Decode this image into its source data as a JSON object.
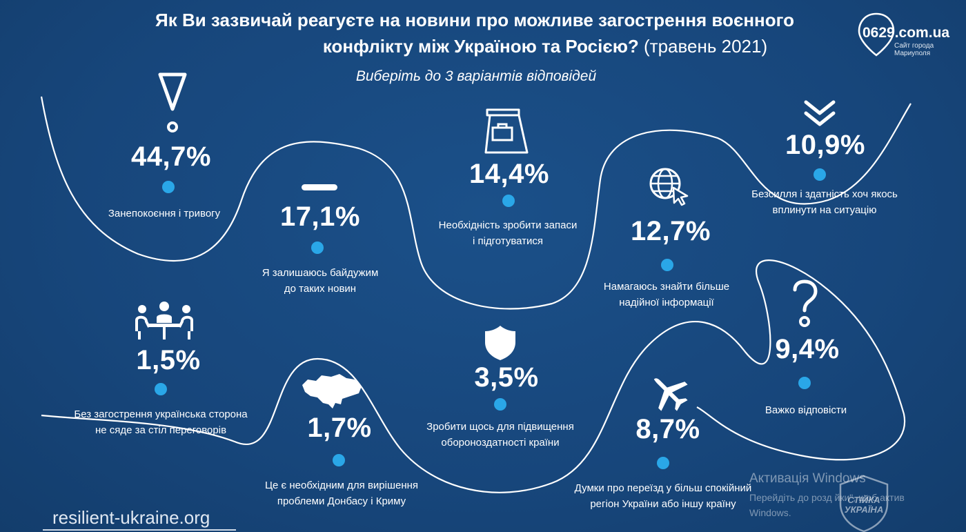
{
  "header": {
    "title_line1": "Як Ви зазвичай реагуєте на новини про можливе загострення воєнного",
    "title_line2": "конфлікту між Україною та Росією?",
    "title_date": " (травень 2021)",
    "subtitle": "Виберіть до 3 варіантів відповідей"
  },
  "chart_data": {
    "type": "infographic",
    "value_suffix": "%",
    "items": [
      {
        "label": "Занепокоєння і тривогу",
        "value": 44.7,
        "value_text": "44,7%",
        "icon": "exclamation-icon"
      },
      {
        "label": "Я залишаюсь байдужим до таких новин",
        "label_lines": [
          "Я залишаюсь байдужим",
          "до таких новин"
        ],
        "value": 17.1,
        "value_text": "17,1%",
        "icon": "minus-icon"
      },
      {
        "label": "Необхідність зробити запаси і підготуватися",
        "label_lines": [
          "Необхідність зробити запаси",
          "і підготуватися"
        ],
        "value": 14.4,
        "value_text": "14,4%",
        "icon": "shopping-bag-icon"
      },
      {
        "label": "Намагаюсь знайти більше надійної інформації",
        "label_lines": [
          "Намагаюсь знайти більше",
          "надійної інформації"
        ],
        "value": 12.7,
        "value_text": "12,7%",
        "icon": "globe-cursor-icon"
      },
      {
        "label": "Безсилля і здатність хоч якось вплинути на ситуацію",
        "label_lines": [
          "Безсилля і здатність хоч якось",
          "вплинути на ситуацію"
        ],
        "value": 10.9,
        "value_text": "10,9%",
        "icon": "double-chevron-down-icon"
      },
      {
        "label": "Без загострення українська сторона не сяде за стіл переговорів",
        "label_lines": [
          "Без загострення українська сторона",
          "не сяде за стіл переговорів"
        ],
        "value": 1.5,
        "value_text": "1,5%",
        "icon": "negotiation-table-icon"
      },
      {
        "label": "Це є необхідним для вирішення проблеми Донбасу і Криму",
        "label_lines": [
          "Це є необхідним для вирішення",
          "проблеми Донбасу і Криму"
        ],
        "value": 1.7,
        "value_text": "1,7%",
        "icon": "ukraine-map-icon"
      },
      {
        "label": "Зробити щось для підвищення обороноздатності країни",
        "label_lines": [
          "Зробити щось для підвищення",
          "обороноздатності країни"
        ],
        "value": 3.5,
        "value_text": "3,5%",
        "icon": "shield-icon"
      },
      {
        "label": "Думки про переїзд у більш спокійний регіон України або іншу країну",
        "label_lines": [
          "Думки про переїзд у більш спокійний",
          "регіон України або іншу країну"
        ],
        "value": 8.7,
        "value_text": "8,7%",
        "icon": "airplane-icon"
      },
      {
        "label": "Важко відповісти",
        "value": 9.4,
        "value_text": "9,4%",
        "icon": "question-mark-icon"
      }
    ]
  },
  "footer": {
    "source_url": "resilient-ukraine.org"
  },
  "logo": {
    "text": "0629.com.ua",
    "sub_line1": "Сайт города",
    "sub_line2": "Мариуполя"
  },
  "watermark": {
    "line1": "Активація Windows",
    "line2": "Перейдіть до розд                   йки\", щоб актив",
    "line3": "Windows.",
    "stamp_text": "СТІЙКА УКРАЇНА"
  },
  "colors": {
    "background": "#17467b",
    "accent_dot": "#2aa7e8",
    "text": "#ffffff"
  }
}
